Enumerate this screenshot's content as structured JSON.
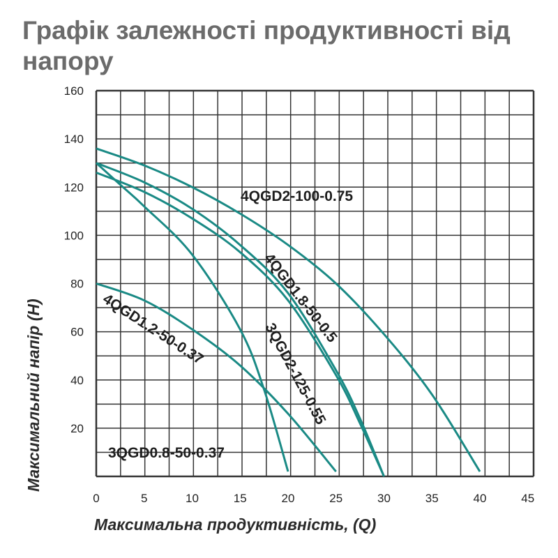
{
  "chart_data": {
    "type": "line",
    "title": "Графік залежності продуктивності від напору",
    "xlabel": "Максимальна продуктивність, (Q)",
    "ylabel": "Максимальний напір (H)",
    "xlim": [
      0,
      45
    ],
    "ylim": [
      0,
      160
    ],
    "x_ticks": [
      "0",
      "5",
      "10",
      "15",
      "20",
      "25",
      "30",
      "35",
      "40",
      "45"
    ],
    "y_ticks": [
      "20",
      "40",
      "60",
      "80",
      "100",
      "120",
      "140",
      "160"
    ],
    "grid": true,
    "legend": "inline labels",
    "line_color": "#1a8a85",
    "series": [
      {
        "name": "4QGD2-100-0.75",
        "x": [
          0,
          5,
          10,
          15,
          20,
          25,
          30,
          35,
          40
        ],
        "y": [
          136,
          129,
          120,
          109,
          96,
          80,
          59,
          34,
          2
        ]
      },
      {
        "name": "4QGD1.8-50-0.5",
        "x": [
          0,
          5,
          10,
          15,
          20,
          25,
          27.5,
          30
        ],
        "y": [
          130,
          122,
          111,
          96,
          76,
          44,
          24,
          0
        ]
      },
      {
        "name": "3QGD2-125-0.55",
        "x": [
          0,
          5,
          10,
          15,
          20,
          25,
          27.5,
          30
        ],
        "y": [
          126,
          118,
          107,
          93,
          73,
          42,
          22,
          0
        ]
      },
      {
        "name": "4QGD1.2-50-0.37",
        "x": [
          0,
          5,
          10,
          15,
          20,
          25
        ],
        "y": [
          80,
          73,
          61,
          46,
          26,
          2
        ]
      },
      {
        "name": "3QGD0.8-50-0.37",
        "x": [
          0,
          2.5,
          5,
          10,
          15,
          17.5,
          20
        ],
        "y": [
          130,
          121,
          112,
          92,
          61,
          36,
          2
        ]
      }
    ]
  }
}
